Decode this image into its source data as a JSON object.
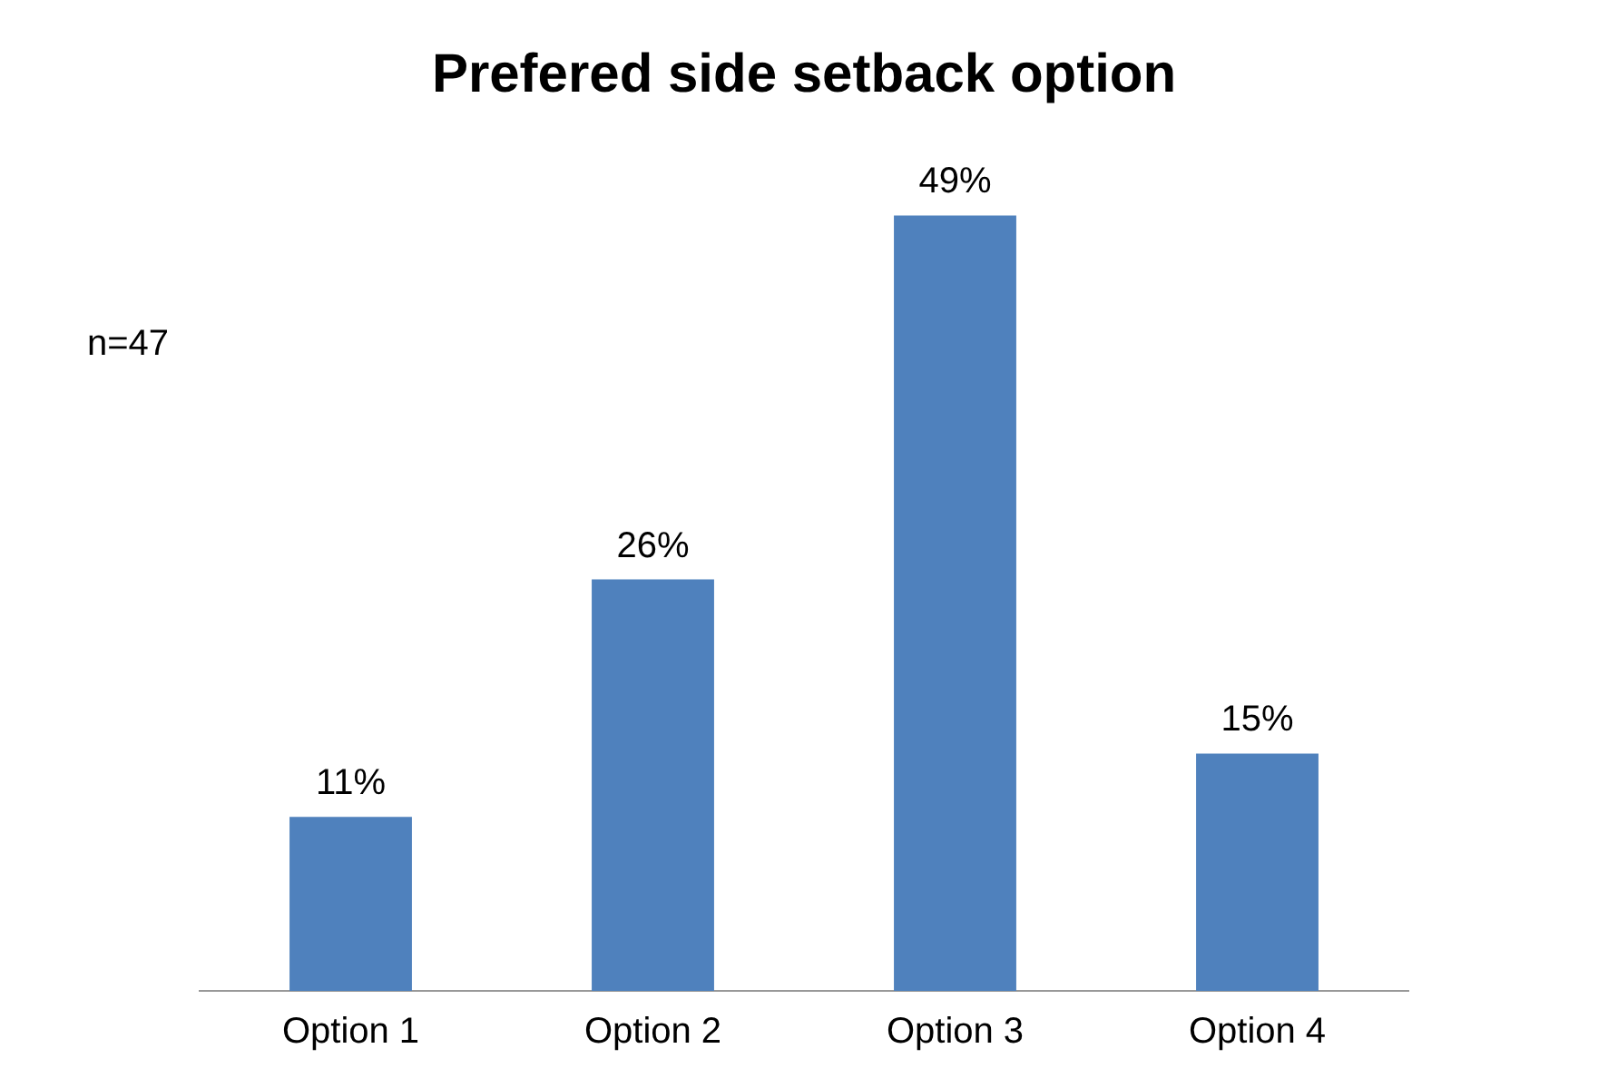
{
  "chart_data": {
    "type": "bar",
    "title": "Prefered side setback option",
    "categories": [
      "Option 1",
      "Option 2",
      "Option 3",
      "Option 4"
    ],
    "values": [
      11,
      26,
      49,
      15
    ],
    "value_labels": [
      "11%",
      "26%",
      "49%",
      "15%"
    ],
    "color": "#4f81bd",
    "annotations": [
      "n=47"
    ],
    "legend": false,
    "grid": false
  }
}
